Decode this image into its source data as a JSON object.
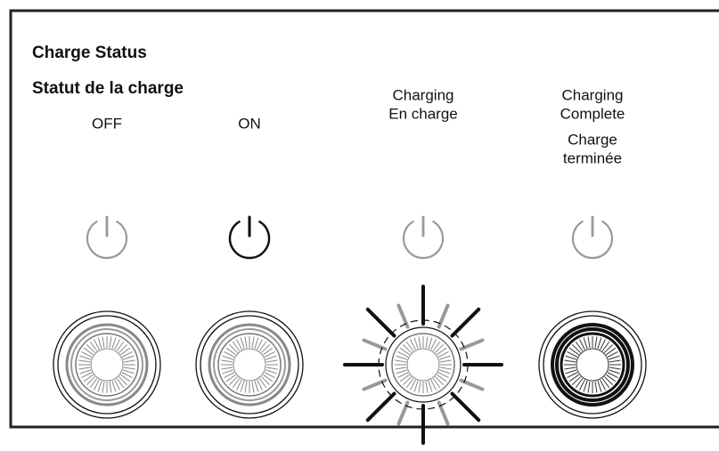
{
  "header": {
    "title": "Charge Status",
    "subtitle": "Statut de la charge"
  },
  "columns": [
    {
      "lines": [
        "OFF"
      ]
    },
    {
      "lines": [
        "ON"
      ]
    },
    {
      "lines": [
        "Charging",
        "En charge"
      ]
    },
    {
      "lines": [
        "Charging",
        "Complete",
        "Charge",
        "terminée"
      ]
    }
  ]
}
